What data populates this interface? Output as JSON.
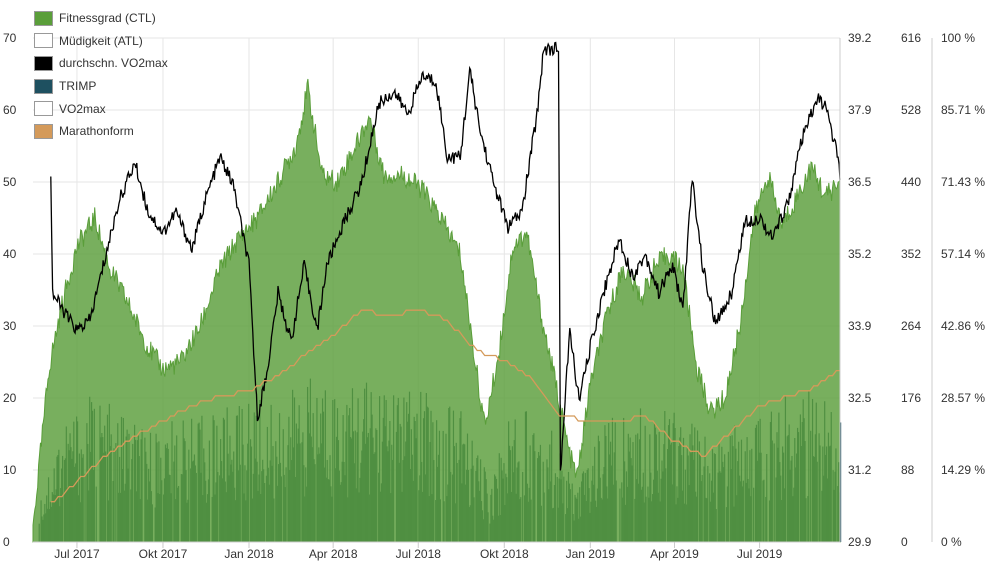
{
  "chart_data": {
    "type": "area",
    "legend_placement": "top-left",
    "grid": true,
    "x_axis": {
      "ticks": [
        "Jul 2017",
        "Okt 2017",
        "Jan 2018",
        "Apr 2018",
        "Jul 2018",
        "Okt 2018",
        "Jan 2019",
        "Apr 2019",
        "Jul 2019"
      ],
      "range": [
        "2017-05-15",
        "2019-09-25"
      ]
    },
    "y_axes": {
      "left": {
        "ticks": [
          "0",
          "10",
          "20",
          "30",
          "40",
          "50",
          "60",
          "70"
        ],
        "range": [
          0,
          70
        ]
      },
      "vo2max": {
        "ticks": [
          "29.9",
          "31.2",
          "32.5",
          "33.9",
          "35.2",
          "36.5",
          "37.9",
          "39.2"
        ],
        "range": [
          29.9,
          39.2
        ]
      },
      "trimp": {
        "ticks": [
          "0",
          "88",
          "176",
          "264",
          "352",
          "440",
          "528",
          "616"
        ],
        "range": [
          0,
          616
        ]
      },
      "marathon": {
        "ticks": [
          "0 %",
          "14.29 %",
          "28.57 %",
          "42.86 %",
          "57.14 %",
          "71.43 %",
          "85.71 %",
          "100 %"
        ],
        "range": [
          0,
          100
        ]
      }
    },
    "series": [
      {
        "name": "Fitnessgrad (CTL)",
        "color": "#5a9e3a",
        "type": "area",
        "points": [
          [
            "2017-05-15",
            2
          ],
          [
            "2017-06-01",
            24
          ],
          [
            "2017-06-15",
            33
          ],
          [
            "2017-07-01",
            41
          ],
          [
            "2017-07-20",
            45
          ],
          [
            "2017-08-05",
            38
          ],
          [
            "2017-08-25",
            33
          ],
          [
            "2017-09-15",
            27
          ],
          [
            "2017-10-01",
            24
          ],
          [
            "2017-10-20",
            25
          ],
          [
            "2017-11-10",
            30
          ],
          [
            "2017-12-01",
            38
          ],
          [
            "2017-12-20",
            42
          ],
          [
            "2018-01-10",
            45
          ],
          [
            "2018-02-01",
            50
          ],
          [
            "2018-02-20",
            55
          ],
          [
            "2018-03-05",
            63
          ],
          [
            "2018-03-20",
            51
          ],
          [
            "2018-04-05",
            50
          ],
          [
            "2018-04-25",
            55
          ],
          [
            "2018-05-10",
            59
          ],
          [
            "2018-05-25",
            51
          ],
          [
            "2018-06-15",
            51
          ],
          [
            "2018-07-05",
            49
          ],
          [
            "2018-07-25",
            45
          ],
          [
            "2018-08-15",
            40
          ],
          [
            "2018-09-01",
            24
          ],
          [
            "2018-09-10",
            16
          ],
          [
            "2018-09-25",
            26
          ],
          [
            "2018-10-10",
            41
          ],
          [
            "2018-10-25",
            43
          ],
          [
            "2018-11-10",
            31
          ],
          [
            "2018-11-25",
            22
          ],
          [
            "2018-12-10",
            12
          ],
          [
            "2018-12-18",
            9
          ],
          [
            "2019-01-01",
            22
          ],
          [
            "2019-01-20",
            32
          ],
          [
            "2019-02-05",
            38
          ],
          [
            "2019-02-25",
            34
          ],
          [
            "2019-03-10",
            38
          ],
          [
            "2019-03-25",
            40
          ],
          [
            "2019-04-10",
            38
          ],
          [
            "2019-04-25",
            24
          ],
          [
            "2019-05-10",
            18
          ],
          [
            "2019-05-25",
            20
          ],
          [
            "2019-06-10",
            30
          ],
          [
            "2019-06-25",
            45
          ],
          [
            "2019-07-10",
            51
          ],
          [
            "2019-07-25",
            44
          ],
          [
            "2019-08-10",
            48
          ],
          [
            "2019-08-25",
            52
          ],
          [
            "2019-09-10",
            48
          ],
          [
            "2019-09-25",
            50
          ]
        ]
      },
      {
        "name": "Müdigkeit (ATL)",
        "color": "#ffffff",
        "type": "area",
        "points": []
      },
      {
        "name": "durchschn. VO2max",
        "color": "#000000",
        "type": "line",
        "axis": "vo2max",
        "points": [
          [
            "2017-06-03",
            36.7
          ],
          [
            "2017-06-05",
            34.5
          ],
          [
            "2017-06-15",
            34.2
          ],
          [
            "2017-07-01",
            33.8
          ],
          [
            "2017-07-15",
            34.0
          ],
          [
            "2017-08-01",
            35.2
          ],
          [
            "2017-08-15",
            36.2
          ],
          [
            "2017-09-01",
            36.9
          ],
          [
            "2017-09-15",
            36.0
          ],
          [
            "2017-10-01",
            35.6
          ],
          [
            "2017-10-15",
            36.0
          ],
          [
            "2017-11-01",
            35.3
          ],
          [
            "2017-11-15",
            36.2
          ],
          [
            "2017-12-01",
            37.0
          ],
          [
            "2017-12-15",
            36.5
          ],
          [
            "2018-01-01",
            35.0
          ],
          [
            "2018-01-10",
            32.2
          ],
          [
            "2018-01-20",
            33.0
          ],
          [
            "2018-02-01",
            34.5
          ],
          [
            "2018-02-15",
            33.6
          ],
          [
            "2018-03-01",
            35.0
          ],
          [
            "2018-03-15",
            33.8
          ],
          [
            "2018-03-25",
            35.0
          ],
          [
            "2018-04-10",
            35.7
          ],
          [
            "2018-05-01",
            36.5
          ],
          [
            "2018-05-20",
            38.0
          ],
          [
            "2018-06-05",
            38.2
          ],
          [
            "2018-06-20",
            37.8
          ],
          [
            "2018-07-05",
            38.5
          ],
          [
            "2018-07-20",
            38.4
          ],
          [
            "2018-08-01",
            37.0
          ],
          [
            "2018-08-15",
            37.0
          ],
          [
            "2018-08-25",
            38.6
          ],
          [
            "2018-09-05",
            37.5
          ],
          [
            "2018-09-20",
            36.5
          ],
          [
            "2018-10-05",
            35.7
          ],
          [
            "2018-10-20",
            36.0
          ],
          [
            "2018-11-05",
            37.8
          ],
          [
            "2018-11-12",
            39.0
          ],
          [
            "2018-11-28",
            39.0
          ],
          [
            "2018-11-30",
            31.2
          ],
          [
            "2018-12-10",
            33.8
          ],
          [
            "2018-12-20",
            32.5
          ],
          [
            "2019-01-01",
            33.5
          ],
          [
            "2019-01-15",
            34.5
          ],
          [
            "2019-02-01",
            35.5
          ],
          [
            "2019-02-15",
            34.8
          ],
          [
            "2019-03-01",
            35.2
          ],
          [
            "2019-03-15",
            34.5
          ],
          [
            "2019-03-30",
            35.0
          ],
          [
            "2019-04-10",
            34.2
          ],
          [
            "2019-04-20",
            36.6
          ],
          [
            "2019-05-01",
            35.0
          ],
          [
            "2019-05-15",
            33.9
          ],
          [
            "2019-06-01",
            34.5
          ],
          [
            "2019-06-15",
            35.8
          ],
          [
            "2019-07-01",
            35.9
          ],
          [
            "2019-07-15",
            35.5
          ],
          [
            "2019-08-01",
            36.2
          ],
          [
            "2019-08-15",
            37.3
          ],
          [
            "2019-09-01",
            38.1
          ],
          [
            "2019-09-10",
            37.9
          ],
          [
            "2019-09-20",
            37.2
          ],
          [
            "2019-09-25",
            36.7
          ]
        ]
      },
      {
        "name": "TRIMP",
        "color": "#1e5060",
        "type": "column",
        "axis": "trimp",
        "note_style": "daily columns",
        "points": [
          [
            "2017-05-20",
            40
          ],
          [
            "2017-06-15",
            120
          ],
          [
            "2017-07-15",
            145
          ],
          [
            "2017-08-15",
            130
          ],
          [
            "2017-09-15",
            110
          ],
          [
            "2017-10-15",
            120
          ],
          [
            "2017-11-15",
            125
          ],
          [
            "2017-12-15",
            135
          ],
          [
            "2018-01-15",
            140
          ],
          [
            "2018-02-15",
            150
          ],
          [
            "2018-03-15",
            165
          ],
          [
            "2018-04-15",
            150
          ],
          [
            "2018-05-15",
            160
          ],
          [
            "2018-06-15",
            150
          ],
          [
            "2018-07-15",
            145
          ],
          [
            "2018-08-15",
            130
          ],
          [
            "2018-09-15",
            60
          ],
          [
            "2018-10-15",
            150
          ],
          [
            "2018-11-15",
            120
          ],
          [
            "2018-12-15",
            55
          ],
          [
            "2019-01-15",
            120
          ],
          [
            "2019-02-15",
            130
          ],
          [
            "2019-03-15",
            140
          ],
          [
            "2019-04-15",
            120
          ],
          [
            "2019-05-15",
            95
          ],
          [
            "2019-06-15",
            125
          ],
          [
            "2019-07-15",
            140
          ],
          [
            "2019-08-15",
            150
          ],
          [
            "2019-09-15",
            150
          ]
        ]
      },
      {
        "name": "VO2max",
        "color": "#ffffff",
        "type": "line",
        "points": []
      },
      {
        "name": "Marathonform",
        "color": "#d49a5a",
        "type": "line",
        "axis": "marathon",
        "points": [
          [
            "2017-06-03",
            7.5
          ],
          [
            "2017-07-01",
            12
          ],
          [
            "2017-08-01",
            17
          ],
          [
            "2017-09-01",
            21
          ],
          [
            "2017-10-01",
            24
          ],
          [
            "2017-11-01",
            27
          ],
          [
            "2017-12-01",
            29
          ],
          [
            "2018-01-01",
            30
          ],
          [
            "2018-02-01",
            33
          ],
          [
            "2018-03-01",
            37
          ],
          [
            "2018-04-01",
            41
          ],
          [
            "2018-05-01",
            46
          ],
          [
            "2018-06-01",
            45
          ],
          [
            "2018-07-01",
            46
          ],
          [
            "2018-08-01",
            44
          ],
          [
            "2018-09-01",
            38
          ],
          [
            "2018-10-01",
            36
          ],
          [
            "2018-11-01",
            32
          ],
          [
            "2018-12-01",
            25
          ],
          [
            "2019-01-01",
            24
          ],
          [
            "2019-02-01",
            24
          ],
          [
            "2019-03-01",
            25
          ],
          [
            "2019-04-01",
            20
          ],
          [
            "2019-05-01",
            17
          ],
          [
            "2019-06-01",
            22
          ],
          [
            "2019-07-01",
            27
          ],
          [
            "2019-08-01",
            29
          ],
          [
            "2019-09-01",
            31
          ],
          [
            "2019-09-25",
            34
          ]
        ]
      }
    ]
  }
}
